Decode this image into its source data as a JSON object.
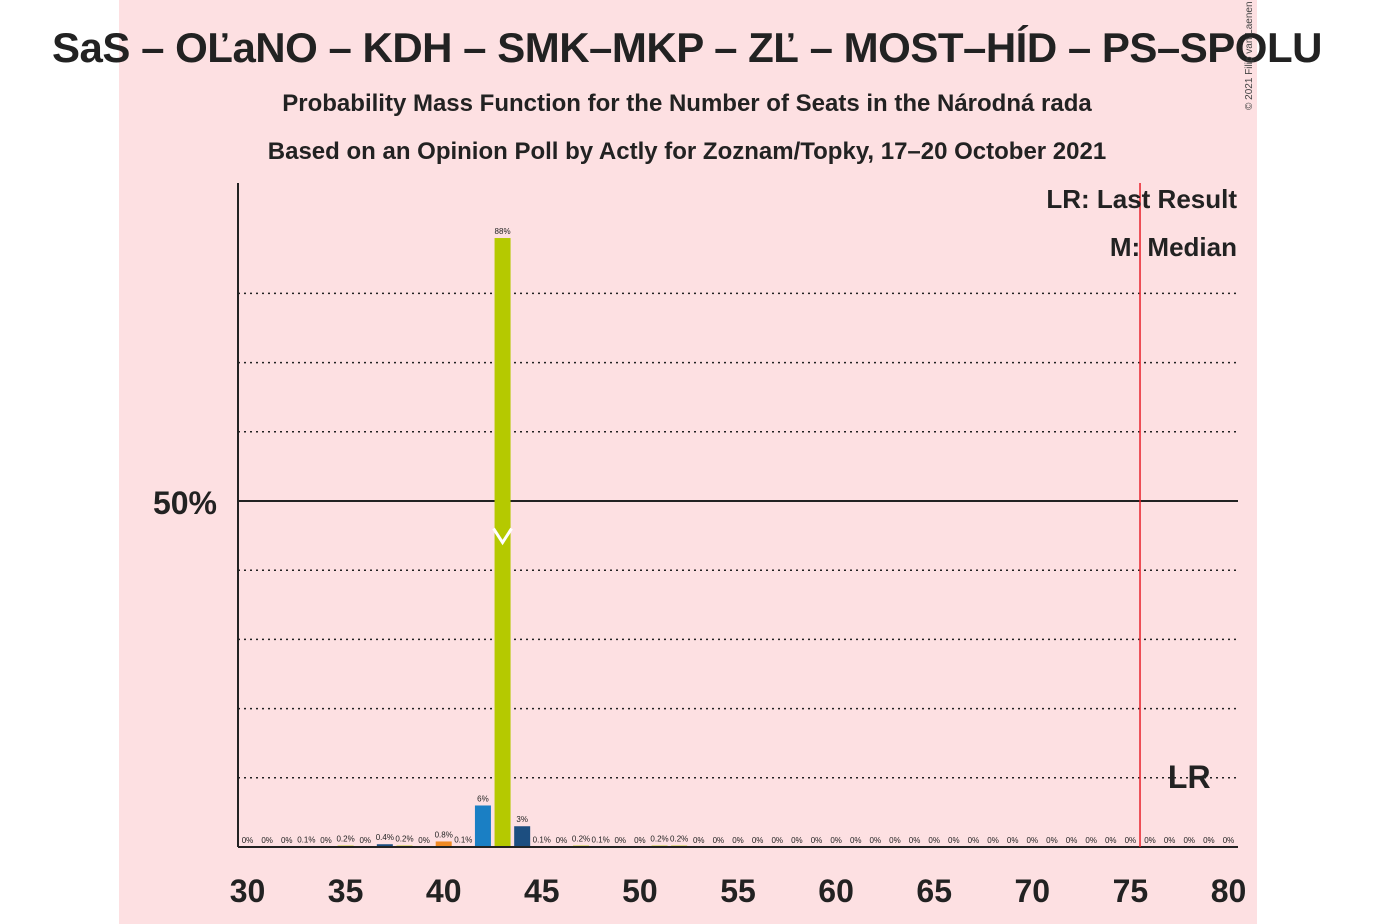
{
  "title": "SaS – OĽaNO – KDH – SMK–MKP – ZĽ – MOST–HÍD – PS–SPOLU",
  "subtitle1": "Probability Mass Function for the Number of Seats in the Národná rada",
  "subtitle2": "Based on an Opinion Poll by Actly for Zoznam/Topky, 17–20 October 2021",
  "copyright": "© 2021 Filip van Laenen",
  "legend": {
    "last_result": "LR: Last Result",
    "median": "M: Median"
  },
  "colors": {
    "background": "#fde0e2",
    "bar_main": "#b5c900",
    "bar_blue": "#1a7fc4",
    "bar_navy": "#1c4e80",
    "bar_orange": "#f08a24",
    "last_result_line": "#e8202a",
    "axis": "#222222"
  },
  "chart_data": {
    "type": "bar",
    "xlim": [
      30,
      80
    ],
    "ylim": [
      0,
      96
    ],
    "x_ticks": [
      30,
      35,
      40,
      45,
      50,
      55,
      60,
      65,
      70,
      75,
      80
    ],
    "y_tick_label": "50%",
    "y_tick_value": 50,
    "gridlines": [
      10,
      20,
      30,
      40,
      60,
      70,
      80
    ],
    "median": 43,
    "median_marker_y": 44,
    "last_result": 76,
    "last_result_label": "LR",
    "bars": [
      {
        "x": 30,
        "value": 0,
        "label": "0%",
        "color": "bar_main"
      },
      {
        "x": 31,
        "value": 0,
        "label": "0%",
        "color": "bar_main"
      },
      {
        "x": 32,
        "value": 0,
        "label": "0%",
        "color": "bar_main"
      },
      {
        "x": 33,
        "value": 0.1,
        "label": "0.1%",
        "color": "bar_main"
      },
      {
        "x": 34,
        "value": 0,
        "label": "0%",
        "color": "bar_main"
      },
      {
        "x": 35,
        "value": 0.2,
        "label": "0.2%",
        "color": "bar_main"
      },
      {
        "x": 36,
        "value": 0,
        "label": "0%",
        "color": "bar_main"
      },
      {
        "x": 37,
        "value": 0.4,
        "label": "0.4%",
        "color": "bar_navy"
      },
      {
        "x": 38,
        "value": 0.2,
        "label": "0.2%",
        "color": "bar_main"
      },
      {
        "x": 39,
        "value": 0,
        "label": "0%",
        "color": "bar_main"
      },
      {
        "x": 40,
        "value": 0.8,
        "label": "0.8%",
        "color": "bar_orange"
      },
      {
        "x": 41,
        "value": 0.1,
        "label": "0.1%",
        "color": "bar_main"
      },
      {
        "x": 42,
        "value": 6,
        "label": "6%",
        "color": "bar_blue"
      },
      {
        "x": 43,
        "value": 88,
        "label": "88%",
        "color": "bar_main"
      },
      {
        "x": 44,
        "value": 3,
        "label": "3%",
        "color": "bar_navy"
      },
      {
        "x": 45,
        "value": 0.1,
        "label": "0.1%",
        "color": "bar_main"
      },
      {
        "x": 46,
        "value": 0,
        "label": "0%",
        "color": "bar_main"
      },
      {
        "x": 47,
        "value": 0.2,
        "label": "0.2%",
        "color": "bar_main"
      },
      {
        "x": 48,
        "value": 0.1,
        "label": "0.1%",
        "color": "bar_main"
      },
      {
        "x": 49,
        "value": 0,
        "label": "0%",
        "color": "bar_main"
      },
      {
        "x": 50,
        "value": 0,
        "label": "0%",
        "color": "bar_main"
      },
      {
        "x": 51,
        "value": 0.2,
        "label": "0.2%",
        "color": "bar_main"
      },
      {
        "x": 52,
        "value": 0.2,
        "label": "0.2%",
        "color": "bar_main"
      },
      {
        "x": 53,
        "value": 0,
        "label": "0%",
        "color": "bar_main"
      },
      {
        "x": 54,
        "value": 0,
        "label": "0%",
        "color": "bar_main"
      },
      {
        "x": 55,
        "value": 0,
        "label": "0%",
        "color": "bar_main"
      },
      {
        "x": 56,
        "value": 0,
        "label": "0%",
        "color": "bar_main"
      },
      {
        "x": 57,
        "value": 0,
        "label": "0%",
        "color": "bar_main"
      },
      {
        "x": 58,
        "value": 0,
        "label": "0%",
        "color": "bar_main"
      },
      {
        "x": 59,
        "value": 0,
        "label": "0%",
        "color": "bar_main"
      },
      {
        "x": 60,
        "value": 0,
        "label": "0%",
        "color": "bar_main"
      },
      {
        "x": 61,
        "value": 0,
        "label": "0%",
        "color": "bar_main"
      },
      {
        "x": 62,
        "value": 0,
        "label": "0%",
        "color": "bar_main"
      },
      {
        "x": 63,
        "value": 0,
        "label": "0%",
        "color": "bar_main"
      },
      {
        "x": 64,
        "value": 0,
        "label": "0%",
        "color": "bar_main"
      },
      {
        "x": 65,
        "value": 0,
        "label": "0%",
        "color": "bar_main"
      },
      {
        "x": 66,
        "value": 0,
        "label": "0%",
        "color": "bar_main"
      },
      {
        "x": 67,
        "value": 0,
        "label": "0%",
        "color": "bar_main"
      },
      {
        "x": 68,
        "value": 0,
        "label": "0%",
        "color": "bar_main"
      },
      {
        "x": 69,
        "value": 0,
        "label": "0%",
        "color": "bar_main"
      },
      {
        "x": 70,
        "value": 0,
        "label": "0%",
        "color": "bar_main"
      },
      {
        "x": 71,
        "value": 0,
        "label": "0%",
        "color": "bar_main"
      },
      {
        "x": 72,
        "value": 0,
        "label": "0%",
        "color": "bar_main"
      },
      {
        "x": 73,
        "value": 0,
        "label": "0%",
        "color": "bar_main"
      },
      {
        "x": 74,
        "value": 0,
        "label": "0%",
        "color": "bar_main"
      },
      {
        "x": 75,
        "value": 0,
        "label": "0%",
        "color": "bar_main"
      },
      {
        "x": 76,
        "value": 0,
        "label": "0%",
        "color": "bar_main"
      },
      {
        "x": 77,
        "value": 0,
        "label": "0%",
        "color": "bar_main"
      },
      {
        "x": 78,
        "value": 0,
        "label": "0%",
        "color": "bar_main"
      },
      {
        "x": 79,
        "value": 0,
        "label": "0%",
        "color": "bar_main"
      },
      {
        "x": 80,
        "value": 0,
        "label": "0%",
        "color": "bar_main"
      }
    ]
  }
}
